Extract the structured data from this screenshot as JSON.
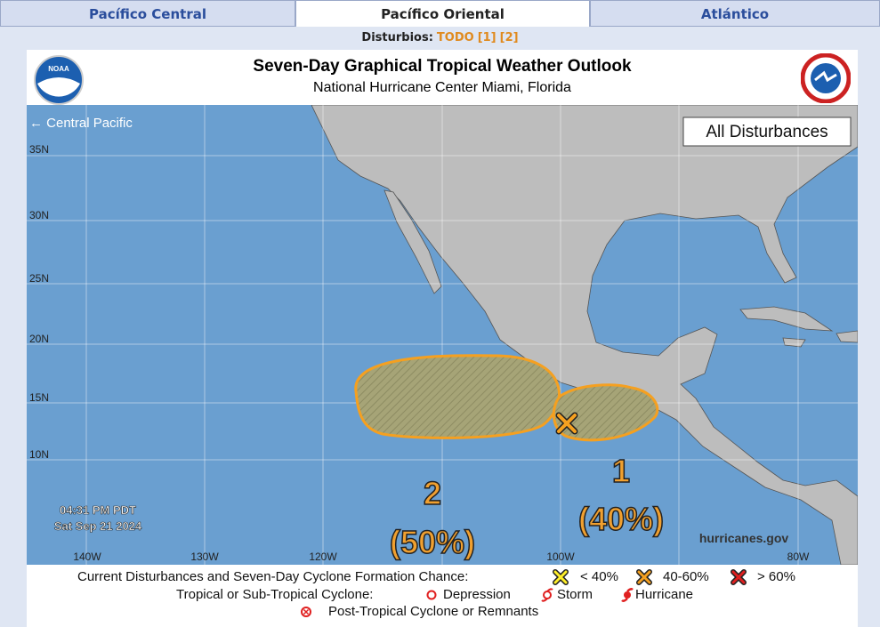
{
  "tabs": [
    "Pacífico Central",
    "Pacífico Oriental",
    "Atlántico"
  ],
  "disturbance_nav": {
    "label": "Disturbios:",
    "links": [
      "TODO",
      "[1]",
      "[2]"
    ]
  },
  "header": {
    "logo": "NOAA",
    "title": "Seven-Day Graphical Tropical Weather Outlook",
    "subtitle": "National Hurricane Center  Miami, Florida"
  },
  "map": {
    "back_link": "← Central Pacific",
    "filter": "All Disturbances",
    "lat_labels": [
      "35N",
      "30N",
      "25N",
      "20N",
      "15N",
      "10N"
    ],
    "lon_labels": [
      "140W",
      "130W",
      "120W",
      "100W",
      "80W"
    ],
    "timestamp": {
      "time": "04:31 PM PDT",
      "date": "Sat Sep 21 2024"
    },
    "credit": "hurricanes.gov",
    "disturbances": [
      {
        "id": "1",
        "chance": "(40%)"
      },
      {
        "id": "2",
        "chance": "(50%)"
      }
    ]
  },
  "legend": {
    "disturbances_label": "Current Disturbances and Seven-Day Cyclone Formation Chance:",
    "chances": [
      "< 40%",
      "40-60%",
      "> 60%"
    ],
    "cyclone_label": "Tropical or Sub-Tropical Cyclone:",
    "cyclones": [
      "Depression",
      "Storm",
      "Hurricane"
    ],
    "post_tropical": "Post-Tropical Cyclone or Remnants"
  }
}
